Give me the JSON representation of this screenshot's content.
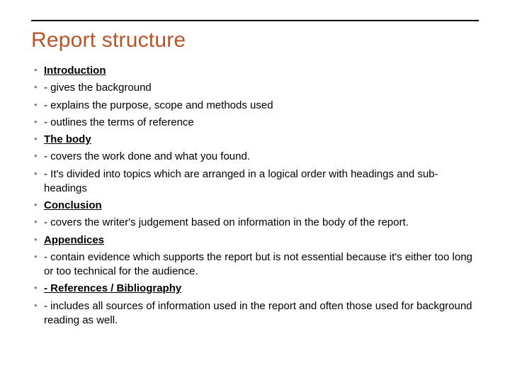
{
  "title": {
    "text": "Report structure",
    "color": "#b85428"
  },
  "rule_color": "#000000",
  "bullet_marker_color": "#808080",
  "text_color": "#000000",
  "font_family": "Arial",
  "title_fontsize": 30,
  "body_fontsize": 15,
  "bullets": [
    {
      "text": " Introduction",
      "is_heading": true
    },
    {
      "text": "- gives the background",
      "is_heading": false
    },
    {
      "text": "- explains the purpose, scope and methods used",
      "is_heading": false
    },
    {
      "text": "- outlines the terms of reference",
      "is_heading": false
    },
    {
      "text": " The body",
      "is_heading": true
    },
    {
      "text": "- covers the work done and what you found.",
      "is_heading": false
    },
    {
      "text": "- It's divided into topics which are arranged in a logical order with headings and sub-headings",
      "is_heading": false
    },
    {
      "text": " Conclusion",
      "is_heading": true
    },
    {
      "text": "- covers the writer's judgement based on information in the body of the report.",
      "is_heading": false
    },
    {
      "text": " Appendices",
      "is_heading": true
    },
    {
      "text": "- contain evidence which supports the report but is not essential because it's either too long or too technical for the audience.",
      "is_heading": false
    },
    {
      "text": " - References / Bibliography",
      "is_heading": true
    },
    {
      "text": "- includes all sources of information used in the report and often those used for background reading as well.",
      "is_heading": false
    }
  ]
}
